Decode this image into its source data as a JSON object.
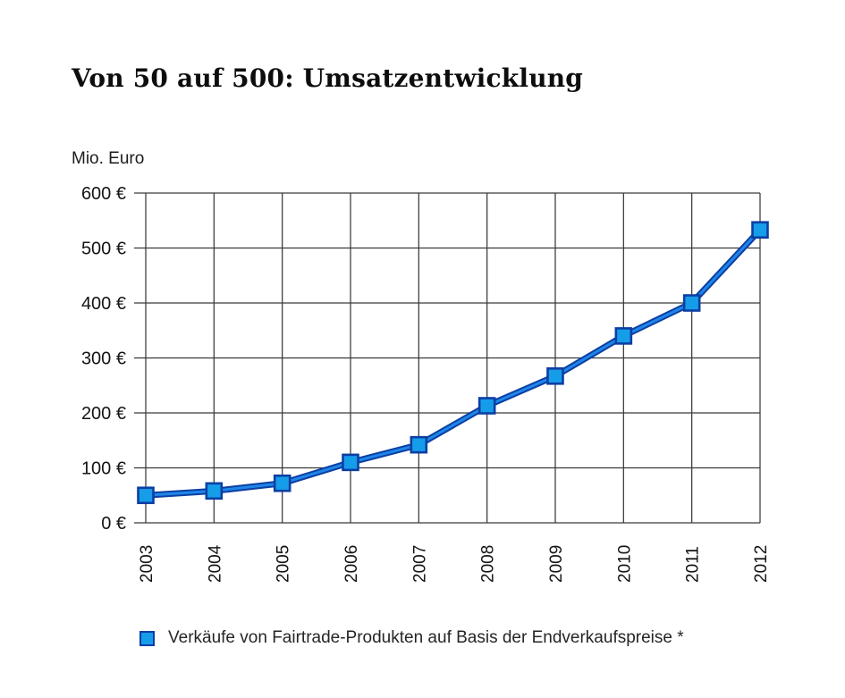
{
  "header": {
    "title": "Von 50 auf 500: Umsatzentwicklung"
  },
  "chart_data": {
    "type": "line",
    "title": "Von 50 auf 500: Umsatzentwicklung",
    "unit_label": "Mio. Euro",
    "categories": [
      "2003",
      "2004",
      "2005",
      "2006",
      "2007",
      "2008",
      "2009",
      "2010",
      "2011",
      "2012"
    ],
    "series": [
      {
        "name": "Verkäufe von Fairtrade-Produkten auf Basis der Endverkaufspreise *",
        "values": [
          50,
          58,
          72,
          110,
          142,
          213,
          267,
          340,
          400,
          533
        ]
      }
    ],
    "ylim": [
      0,
      600
    ],
    "ytick_step": 100,
    "ytick_labels": [
      "0 €",
      "100 €",
      "200 €",
      "300 €",
      "400 €",
      "500 €",
      "600 €"
    ],
    "grid": true,
    "legend_position": "bottom",
    "marker_shape": "square",
    "colors": {
      "grid": "#3a3a3a",
      "text": "#141414",
      "line_outer": "#0c3fa3",
      "line_inner": "#1f86e8",
      "marker_fill": "#169dea",
      "marker_border": "#0c3fa3"
    }
  }
}
